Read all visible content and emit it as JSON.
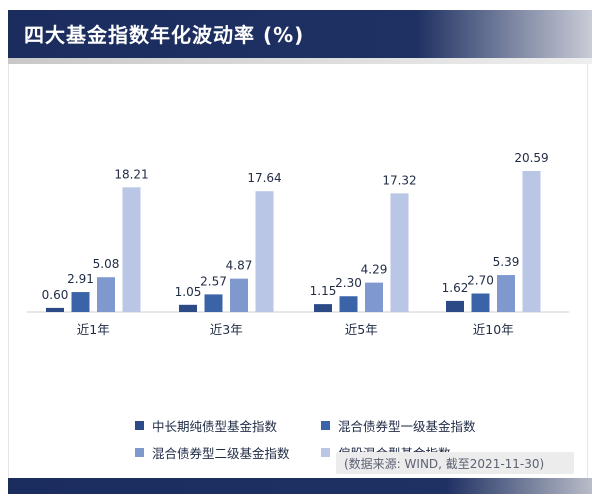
{
  "title": "四大基金指数年化波动率 (%)",
  "source": "(数据来源: WIND, 截至2021-11-30)",
  "chart_data": {
    "type": "bar",
    "categories": [
      "近1年",
      "近3年",
      "近5年",
      "近10年"
    ],
    "series": [
      {
        "name": "中长期纯债型基金指数",
        "color": "#2c4b86",
        "values": [
          0.6,
          1.05,
          1.15,
          1.62
        ]
      },
      {
        "name": "混合债券型一级基金指数",
        "color": "#3b64a8",
        "values": [
          2.91,
          2.57,
          2.3,
          2.7
        ]
      },
      {
        "name": "混合债券型二级基金指数",
        "color": "#7f99cf",
        "values": [
          5.08,
          4.87,
          4.29,
          5.39
        ]
      },
      {
        "name": "偏股混合型基金指数",
        "color": "#b9c6e6",
        "values": [
          18.21,
          17.64,
          17.32,
          20.59
        ]
      }
    ],
    "ylim": [
      0,
      22
    ],
    "grid": false,
    "legend_position": "bottom"
  }
}
